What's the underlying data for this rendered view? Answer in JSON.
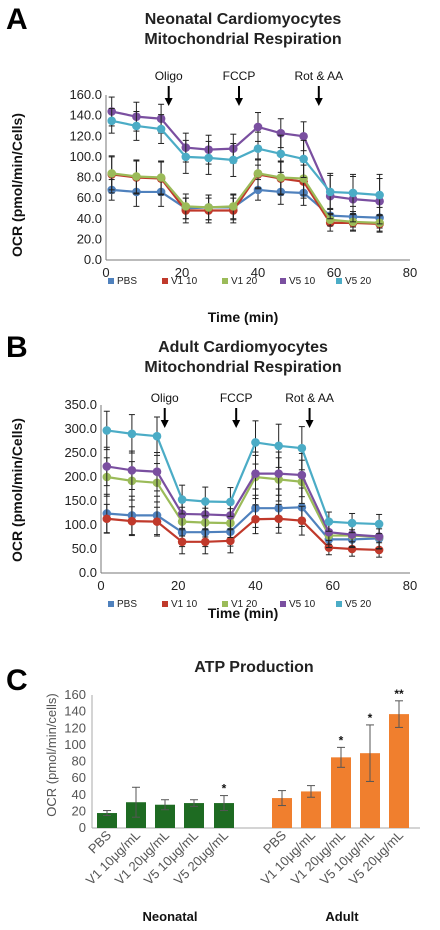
{
  "chart_data": [
    {
      "panel": "A",
      "type": "line",
      "title_lines": [
        "Neonatal Cardiomyocytes",
        "Mitochondrial Respiration"
      ],
      "xlabel": "Time (min)",
      "ylabel": "OCR (pmol/min/Cells)",
      "xlim": [
        0,
        80
      ],
      "ylim": [
        0,
        160
      ],
      "xticks": [
        0,
        20,
        40,
        60,
        80
      ],
      "yticks": [
        "0.0",
        "20.0",
        "40.0",
        "60.0",
        "80.0",
        "100.0",
        "120.0",
        "140.0",
        "160.0"
      ],
      "x": [
        1.5,
        8,
        14.5,
        21,
        27,
        33.5,
        40,
        46,
        52,
        59,
        65,
        72
      ],
      "annotations": [
        {
          "label": "Oligo",
          "x": 16.5
        },
        {
          "label": "FCCP",
          "x": 35
        },
        {
          "label": "Rot & AA",
          "x": 56
        }
      ],
      "legend_position": "bottom",
      "series": [
        {
          "name": "PBS",
          "color": "#4f81bd",
          "values": [
            68,
            66,
            66,
            50,
            51,
            51,
            68,
            66,
            65,
            43,
            42,
            41
          ],
          "errors": [
            10,
            14,
            14,
            10,
            12,
            12,
            10,
            12,
            12,
            6,
            10,
            10
          ]
        },
        {
          "name": "V1 10",
          "color": "#c0392b",
          "values": [
            83,
            80,
            79,
            48,
            48,
            48,
            83,
            79,
            76,
            36,
            36,
            35
          ],
          "errors": [
            18,
            16,
            16,
            12,
            12,
            12,
            14,
            16,
            16,
            8,
            8,
            8
          ]
        },
        {
          "name": "V1 20",
          "color": "#9bbb59",
          "values": [
            84,
            81,
            80,
            52,
            51,
            52,
            84,
            80,
            79,
            39,
            37,
            36
          ],
          "errors": [
            16,
            16,
            16,
            12,
            12,
            12,
            14,
            16,
            16,
            6,
            8,
            8
          ]
        },
        {
          "name": "V5 10",
          "color": "#7a4fa0",
          "values": [
            144,
            139,
            137,
            109,
            107,
            108,
            129,
            123,
            120,
            62,
            59,
            57
          ],
          "errors": [
            14,
            14,
            14,
            14,
            14,
            14,
            14,
            14,
            14,
            22,
            22,
            22
          ]
        },
        {
          "name": "V5 20",
          "color": "#4bacc6",
          "values": [
            135,
            130,
            127,
            100,
            99,
            97,
            108,
            103,
            98,
            66,
            65,
            63
          ],
          "errors": [
            12,
            14,
            14,
            16,
            16,
            16,
            16,
            18,
            18,
            16,
            18,
            20
          ]
        }
      ]
    },
    {
      "panel": "B",
      "type": "line",
      "title_lines": [
        "Adult Cardiomyocytes",
        "Mitochondrial Respiration"
      ],
      "xlabel": "Time (min)",
      "ylabel": "OCR (pmol/min/Cells)",
      "xlim": [
        0,
        80
      ],
      "ylim": [
        0,
        350
      ],
      "xticks": [
        0,
        20,
        40,
        60,
        80
      ],
      "yticks": [
        "0.0",
        "50.0",
        "100.0",
        "150.0",
        "200.0",
        "250.0",
        "300.0",
        "350.0"
      ],
      "x": [
        1.5,
        8,
        14.5,
        21,
        27,
        33.5,
        40,
        46,
        52,
        59,
        65,
        72
      ],
      "annotations": [
        {
          "label": "Oligo",
          "x": 16.5
        },
        {
          "label": "FCCP",
          "x": 35
        },
        {
          "label": "Rot & AA",
          "x": 54
        }
      ],
      "legend_position": "bottom",
      "series": [
        {
          "name": "PBS",
          "color": "#4f81bd",
          "values": [
            124,
            120,
            120,
            85,
            85,
            86,
            135,
            135,
            137,
            70,
            70,
            72
          ],
          "errors": [
            40,
            40,
            40,
            30,
            30,
            30,
            40,
            40,
            40,
            20,
            20,
            20
          ]
        },
        {
          "name": "V1 10",
          "color": "#c0392b",
          "values": [
            113,
            108,
            107,
            65,
            65,
            67,
            112,
            113,
            109,
            53,
            50,
            48
          ],
          "errors": [
            30,
            30,
            30,
            25,
            25,
            25,
            30,
            30,
            30,
            15,
            15,
            15
          ]
        },
        {
          "name": "V1 20",
          "color": "#9bbb59",
          "values": [
            200,
            192,
            188,
            107,
            105,
            104,
            200,
            195,
            190,
            78,
            78,
            75
          ],
          "errors": [
            40,
            40,
            40,
            30,
            30,
            30,
            45,
            45,
            45,
            25,
            25,
            25
          ]
        },
        {
          "name": "V5 10",
          "color": "#7a4fa0",
          "values": [
            222,
            214,
            211,
            123,
            122,
            120,
            207,
            207,
            204,
            85,
            80,
            76
          ],
          "errors": [
            40,
            40,
            40,
            30,
            30,
            30,
            45,
            45,
            45,
            25,
            25,
            25
          ]
        },
        {
          "name": "V5 20",
          "color": "#4bacc6",
          "values": [
            297,
            290,
            285,
            153,
            149,
            148,
            272,
            265,
            260,
            107,
            104,
            102
          ],
          "errors": [
            40,
            40,
            40,
            30,
            30,
            30,
            45,
            45,
            45,
            20,
            20,
            20
          ]
        }
      ]
    },
    {
      "panel": "C",
      "type": "bar",
      "title": "ATP Production",
      "ylabel": "OCR (pmol/min/cells)",
      "ylim": [
        0,
        160
      ],
      "yticks": [
        "0",
        "20",
        "40",
        "60",
        "80",
        "100",
        "120",
        "140",
        "160"
      ],
      "groups": [
        {
          "name": "Neonatal",
          "color": "#1e6b22",
          "categories": [
            "PBS",
            "V1 10μg/mL",
            "V1 20μg/mL",
            "V5 10μg/mL",
            "V5 20μg/mL"
          ],
          "values": [
            18,
            31,
            28,
            30,
            30
          ],
          "errors": [
            3,
            18,
            6,
            4,
            9
          ],
          "significance": [
            "",
            "",
            "",
            "",
            "*"
          ]
        },
        {
          "name": "Adult",
          "color": "#f07f2e",
          "categories": [
            "PBS",
            "V1 10μg/mL",
            "V1 20μg/mL",
            "V5 10μg/mL",
            "V5 20μg/mL"
          ],
          "values": [
            36,
            44,
            85,
            90,
            137
          ],
          "errors": [
            9,
            7,
            12,
            34,
            16
          ],
          "significance": [
            "",
            "",
            "*",
            "*",
            "**"
          ]
        }
      ]
    }
  ],
  "panels": {
    "A": "A",
    "B": "B",
    "C": "C"
  }
}
